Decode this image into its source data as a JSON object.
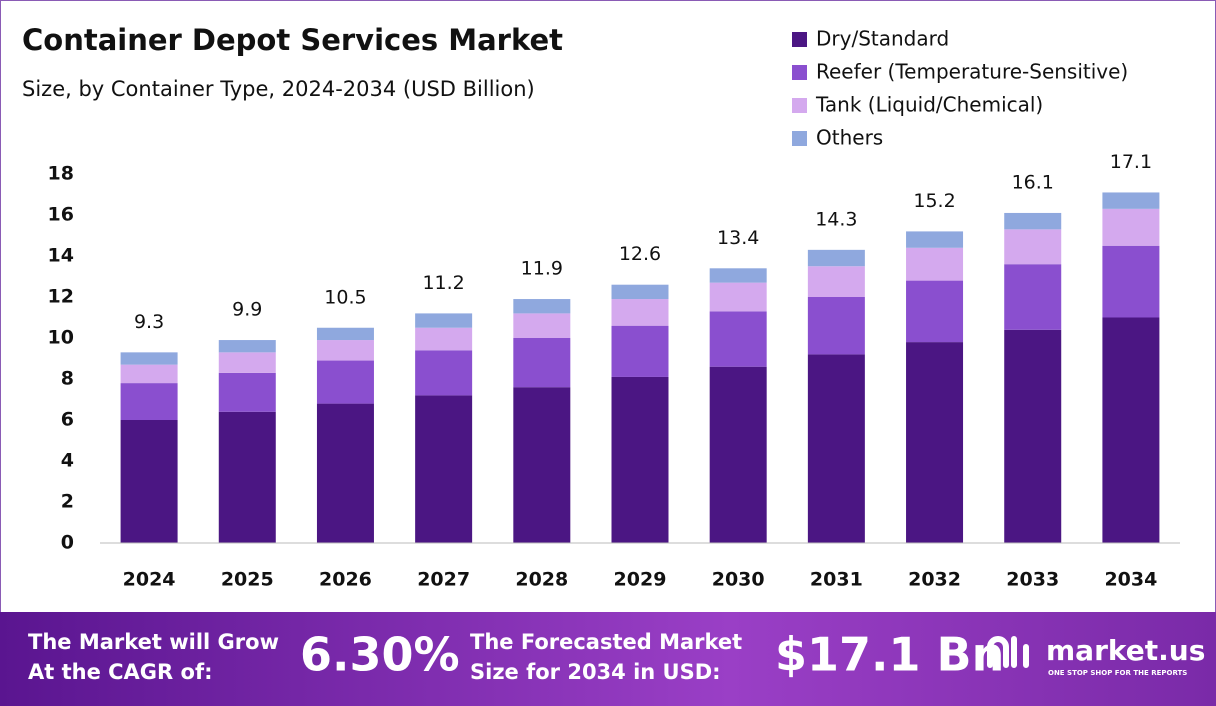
{
  "chart_data": {
    "type": "stacked_bar",
    "title": "Container Depot Services Market",
    "subtitle": "Size, by Container Type, 2024-2034 (USD Billion)",
    "categories": [
      "2024",
      "2025",
      "2026",
      "2027",
      "2028",
      "2029",
      "2030",
      "2031",
      "2032",
      "2033",
      "2034"
    ],
    "series": [
      {
        "name": "Dry/Standard",
        "color": "#4b1683",
        "values": [
          6.0,
          6.4,
          6.8,
          7.2,
          7.6,
          8.1,
          8.6,
          9.2,
          9.8,
          10.4,
          11.0
        ]
      },
      {
        "name": "Reefer (Temperature-Sensitive)",
        "color": "#8a4fcf",
        "values": [
          1.8,
          1.9,
          2.1,
          2.2,
          2.4,
          2.5,
          2.7,
          2.8,
          3.0,
          3.2,
          3.5
        ]
      },
      {
        "name": "Tank (Liquid/Chemical)",
        "color": "#d4a9ee",
        "values": [
          0.9,
          1.0,
          1.0,
          1.1,
          1.2,
          1.3,
          1.4,
          1.5,
          1.6,
          1.7,
          1.8
        ]
      },
      {
        "name": "Others",
        "color": "#8fa8de",
        "values": [
          0.6,
          0.6,
          0.6,
          0.7,
          0.7,
          0.7,
          0.7,
          0.8,
          0.8,
          0.8,
          0.8
        ]
      }
    ],
    "totals": [
      9.3,
      9.9,
      10.5,
      11.2,
      11.9,
      12.6,
      13.4,
      14.3,
      15.2,
      16.1,
      17.1
    ],
    "ylim": [
      0,
      18
    ],
    "yticks": [
      0,
      2,
      4,
      6,
      8,
      10,
      12,
      14,
      16,
      18
    ]
  },
  "footer": {
    "cagr_text": "The Market will Grow At the CAGR of:",
    "cagr_value": "6.30%",
    "forecast_text": "The Forecasted Market Size for 2034 in USD:",
    "forecast_value": "$17.1 Bn",
    "brand": "market.us",
    "tagline": "ONE STOP SHOP FOR THE REPORTS"
  }
}
